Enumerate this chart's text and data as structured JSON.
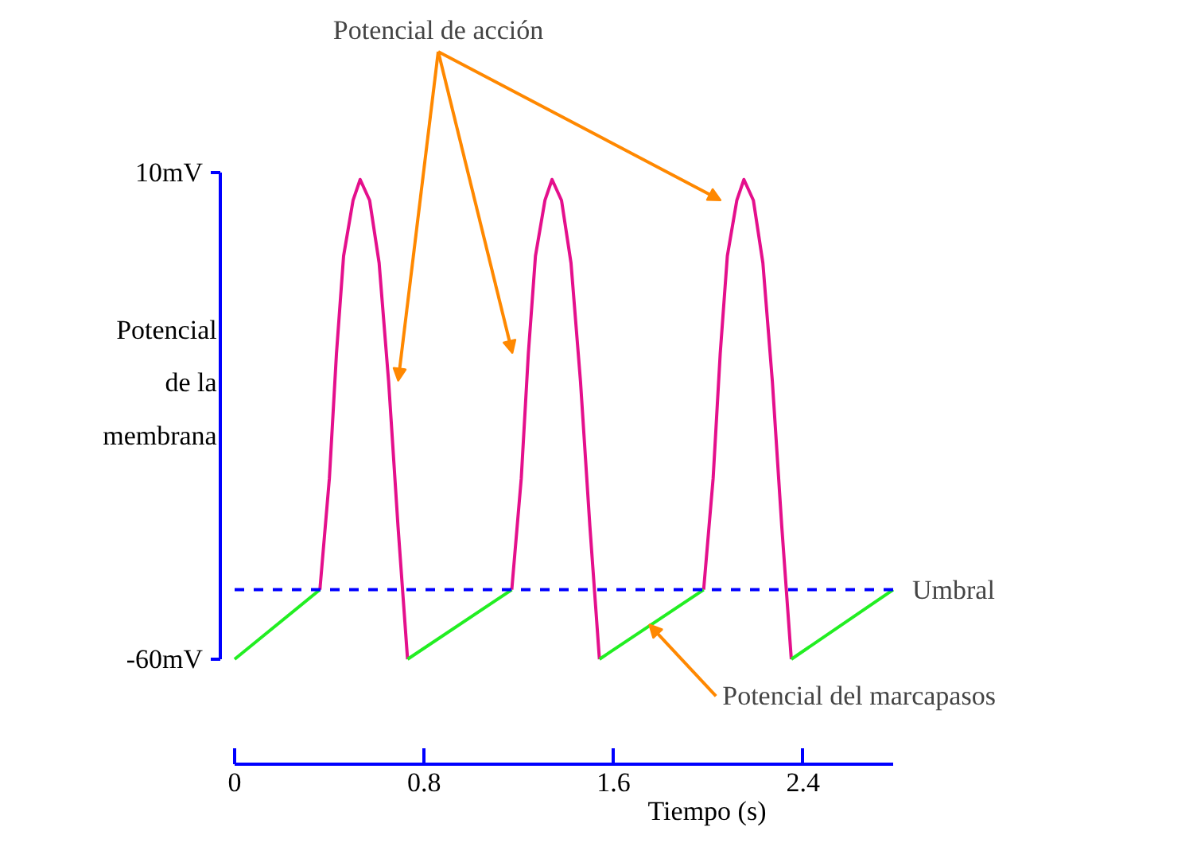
{
  "chart_data": {
    "type": "line",
    "xlabel": "Tiempo (s)",
    "ylabel": "Potencial de la membrana",
    "xlim": [
      0,
      2.78
    ],
    "ylim": [
      -60,
      10
    ],
    "xticks": [
      0,
      0.8,
      1.6,
      2.4
    ],
    "yticks": [
      {
        "value": 10,
        "label": "10mV"
      },
      {
        "value": -60,
        "label": "-60mV"
      }
    ],
    "grid": false,
    "series": [
      {
        "color": "#e4108c",
        "x": [
          0.36,
          0.4,
          0.43,
          0.46,
          0.5,
          0.53,
          0.57,
          0.61,
          0.65,
          0.69,
          0.73,
          0.74,
          1.17,
          1.21,
          1.24,
          1.27,
          1.31,
          1.34,
          1.38,
          1.42,
          1.46,
          1.5,
          1.54,
          1.55,
          1.98,
          2.02,
          2.05,
          2.08,
          2.12,
          2.15,
          2.19,
          2.23,
          2.27,
          2.31,
          2.35
        ],
        "values": [
          -50,
          -34,
          -16,
          -2,
          6,
          9,
          6,
          -3,
          -20,
          -41,
          -60,
          null,
          -50,
          -34,
          -16,
          -2,
          6,
          9,
          6,
          -3,
          -20,
          -41,
          -60,
          null,
          -50,
          -34,
          -16,
          -2,
          6,
          9,
          6,
          -3,
          -20,
          -41,
          -60
        ]
      },
      {
        "color": "#22ee22",
        "x": [
          0,
          0.36,
          0.37,
          0.73,
          1.17,
          1.18,
          1.54,
          1.98,
          1.99,
          2.35,
          2.78
        ],
        "values": [
          -60,
          -50,
          null,
          -60,
          -50,
          null,
          -60,
          -50,
          null,
          -60,
          -50
        ]
      }
    ],
    "ref_lines": [
      {
        "axis": "y",
        "value": -50,
        "label": "Umbral",
        "color": "#0000ff",
        "line_style": "dashed"
      }
    ],
    "annotations": [
      "Potencial de acción",
      {
        "text": "Potencial del marcapasos",
        "x": 1.75,
        "y": -55
      }
    ]
  }
}
